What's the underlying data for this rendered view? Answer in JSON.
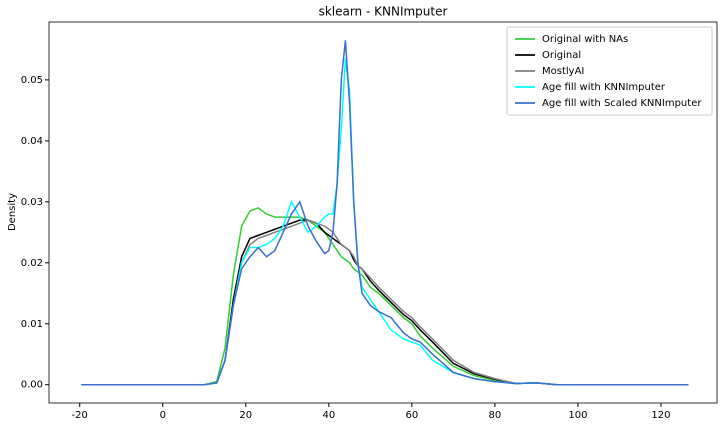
{
  "chart_data": {
    "type": "line",
    "title": "sklearn - KNNImputer",
    "y_label": "Density",
    "x": [
      -19.6,
      0,
      10,
      13,
      15,
      17,
      19,
      21,
      23,
      25,
      27,
      29,
      31,
      33,
      35,
      37,
      39,
      40,
      41,
      42,
      43,
      44,
      45,
      46,
      47,
      48,
      50,
      52,
      55,
      58,
      60,
      62,
      65,
      70,
      75,
      80,
      85,
      90,
      95,
      126.6
    ],
    "series": [
      {
        "name": "Original with NAs",
        "color": "#33cc33",
        "values": [
          0,
          0,
          0,
          0.0005,
          0.006,
          0.018,
          0.026,
          0.0285,
          0.029,
          0.028,
          0.0275,
          0.0275,
          0.0275,
          0.0275,
          0.027,
          0.026,
          0.025,
          0.024,
          0.023,
          0.022,
          0.021,
          0.0205,
          0.02,
          0.019,
          0.0185,
          0.018,
          0.016,
          0.015,
          0.013,
          0.011,
          0.01,
          0.008,
          0.006,
          0.003,
          0.0015,
          0.0007,
          0.0002,
          0.0003,
          0,
          0
        ]
      },
      {
        "name": "Original",
        "color": "#000000",
        "values": [
          0,
          0,
          0,
          0.0003,
          0.004,
          0.014,
          0.021,
          0.024,
          0.0245,
          0.025,
          0.0255,
          0.026,
          0.0265,
          0.027,
          0.027,
          0.0265,
          0.025,
          0.0245,
          0.024,
          0.0235,
          0.023,
          0.0225,
          0.022,
          0.0205,
          0.0195,
          0.019,
          0.017,
          0.0155,
          0.0135,
          0.0115,
          0.0105,
          0.009,
          0.007,
          0.0035,
          0.0018,
          0.0009,
          0.0002,
          0.0003,
          0,
          0
        ]
      },
      {
        "name": "MostlyAI",
        "color": "#808080",
        "values": [
          0,
          0,
          0,
          0.0003,
          0.004,
          0.013,
          0.02,
          0.023,
          0.024,
          0.0245,
          0.025,
          0.0255,
          0.026,
          0.0265,
          0.027,
          0.0265,
          0.026,
          0.0255,
          0.025,
          0.024,
          0.023,
          0.0225,
          0.022,
          0.021,
          0.0195,
          0.019,
          0.0175,
          0.016,
          0.014,
          0.012,
          0.011,
          0.0095,
          0.0075,
          0.004,
          0.002,
          0.001,
          0.0002,
          0.0003,
          0,
          0
        ]
      },
      {
        "name": "Age fill with KNNImputer",
        "color": "#00ffff",
        "values": [
          0,
          0,
          0,
          0.0003,
          0.004,
          0.013,
          0.02,
          0.0225,
          0.0225,
          0.023,
          0.024,
          0.026,
          0.03,
          0.0275,
          0.025,
          0.026,
          0.0275,
          0.028,
          0.028,
          0.033,
          0.042,
          0.0535,
          0.048,
          0.03,
          0.02,
          0.016,
          0.014,
          0.012,
          0.009,
          0.0075,
          0.007,
          0.0065,
          0.004,
          0.002,
          0.001,
          0.0005,
          0.0002,
          0.0003,
          0,
          0
        ]
      },
      {
        "name": "Age fill with Scaled KNNImputer",
        "color": "#3a6fcf",
        "values": [
          0,
          0,
          0,
          0.0003,
          0.004,
          0.013,
          0.019,
          0.021,
          0.0225,
          0.021,
          0.022,
          0.025,
          0.028,
          0.03,
          0.026,
          0.0235,
          0.0215,
          0.022,
          0.025,
          0.033,
          0.05,
          0.0565,
          0.046,
          0.03,
          0.02,
          0.015,
          0.013,
          0.012,
          0.011,
          0.0085,
          0.0075,
          0.007,
          0.005,
          0.002,
          0.001,
          0.0005,
          0.0002,
          0.0003,
          0,
          0
        ]
      }
    ],
    "xlim": [
      -27.4,
      133.5
    ],
    "ylim": [
      -0.003,
      0.0595
    ],
    "xticks": [
      -20,
      0,
      20,
      40,
      60,
      80,
      100,
      120
    ],
    "yticks": [
      {
        "value": 0,
        "label": "0.00"
      },
      0.01,
      0.02,
      0.03,
      0.04,
      0.05
    ],
    "legend": "upper right"
  }
}
